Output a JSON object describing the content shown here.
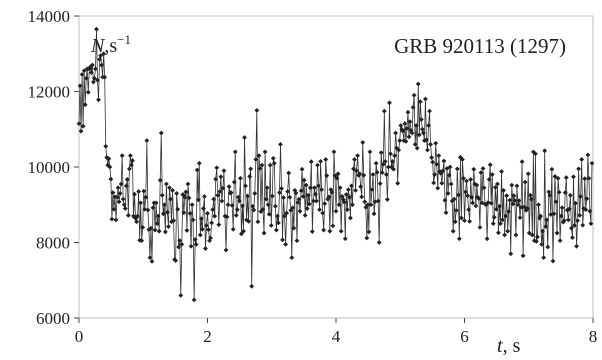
{
  "chart_data": {
    "type": "line",
    "title": "GRB 920113 (1297)",
    "xlabel": {
      "var": "t",
      "unit": ", s"
    },
    "ylabel": {
      "var": "N",
      "unit": ",s",
      "exp": "−1"
    },
    "xlim": [
      0,
      8
    ],
    "ylim": [
      6000,
      14000
    ],
    "xticks": [
      0,
      2,
      4,
      6,
      8
    ],
    "yticks": [
      6000,
      8000,
      10000,
      12000,
      14000
    ],
    "grid": false,
    "marker": "diamond",
    "line_color": "#333333",
    "series": [
      {
        "x_start": 0,
        "x_step": 0.016,
        "values": [
          11150,
          12150,
          10950,
          12450,
          11080,
          12550,
          11650,
          12350,
          12600,
          11980,
          12600,
          12650,
          12500,
          12700,
          12250,
          12350,
          12600,
          13650,
          12300,
          11780,
          12850,
          12950,
          12700,
          12380,
          13000,
          12380,
          10550,
          10250,
          10050,
          10220,
          10000,
          9680,
          8620,
          9320,
          8880,
          9210,
          8600,
          9200,
          9450,
          9080,
          9300,
          9550,
          10300,
          9150,
          9000,
          8900,
          9500,
          9670,
          8720,
          9950,
          10300,
          10050,
          10170,
          8700,
          9280,
          8640,
          8550,
          8700,
          9350,
          8060,
          9050,
          8050,
          8400,
          9360,
          8880,
          9200,
          10700,
          8860,
          8340,
          7600,
          8380,
          7500,
          8920,
          9050,
          8330,
          9050,
          8500,
          8700,
          8300,
          9650,
          10900,
          9250,
          8760,
          9000,
          8280,
          9550,
          8800,
          8420,
          9450,
          9150,
          8550,
          9380,
          8580,
          7550,
          7520,
          9300,
          8880,
          7880,
          8050,
          6600,
          7950,
          9270,
          8790,
          9200,
          9340,
          8320,
          9550,
          9180,
          8770,
          7900,
          9000,
          8600,
          6480,
          8080,
          7950,
          9920,
          9130,
          10100,
          8200,
          8630,
          8350,
          8900,
          9220,
          7840,
          8450,
          8770,
          8340,
          8050,
          8120,
          8520,
          8870,
          9150,
          8700,
          9680,
          9980,
          9250,
          8470,
          9350,
          9740,
          9100,
          9440,
          9900,
          8700,
          7800,
          8680,
          9000,
          9480,
          9310,
          9320,
          8980,
          8350,
          9600,
          10400,
          8720,
          8870,
          9200,
          9100,
          9700,
          8230,
          8970,
          8300,
          10780,
          9500,
          8600,
          9230,
          8560,
          9750,
          9950,
          6840,
          8960,
          8860,
          9300,
          10200,
          11500,
          8550,
          10300,
          9960,
          8820,
          10050,
          8880,
          8250,
          10400,
          9150,
          9450,
          9000,
          8750,
          10050,
          8450,
          9230,
          10230,
          10100,
          8960,
          8330,
          8700,
          8520,
          9320,
          10600,
          9430,
          8070,
          9190,
          8700,
          7950,
          8780,
          9350,
          9840,
          9200,
          8850,
          7600,
          8920,
          8380,
          9380,
          9310,
          8050,
          9060,
          9150,
          8830,
          9370,
          9940,
          9220,
          9650,
          8720,
          9520,
          8900,
          9250,
          9020,
          9450,
          10140,
          8290,
          9100,
          9450,
          9280,
          9100,
          10050,
          9500,
          8870,
          10150,
          9400,
          8780,
          8330,
          9030,
          10200,
          9770,
          9150,
          9210,
          8300,
          9400,
          9330,
          8440,
          10400,
          9770,
          8830,
          9700,
          9820,
          9000,
          9450,
          8300,
          9220,
          9140,
          9070,
          8100,
          9270,
          8870,
          9400,
          9200,
          8650,
          9500,
          9000,
          9950,
          10200,
          9380,
          9900,
          10300,
          9780,
          9820,
          9480,
          9210,
          10650,
          9780,
          9080,
          8930,
          8120,
          9000,
          8280,
          10400,
          9000,
          9400,
          9800,
          8760,
          9080,
          10100,
          9860,
          9100,
          8000,
          9560,
          10380,
          9850,
          10070,
          11480,
          10150,
          9800,
          9140,
          10000,
          11700,
          10350,
          10000,
          10150,
          9940,
          10300,
          10900,
          10500,
          9570,
          10450,
          10700,
          11100,
          11000,
          10950,
          10700,
          11150,
          10680,
          11020,
          11450,
          10800,
          11200,
          10970,
          10900,
          11580,
          11900,
          10600,
          11100,
          10500,
          12200,
          10850,
          11730,
          11260,
          11000,
          10900,
          10700,
          11800,
          10720,
          10450,
          11100,
          11480,
          10600,
          10250,
          10130,
          9580,
          9800,
          10630,
          10070,
          9440,
          10300,
          9880,
          9830,
          9570,
          9900,
          10160,
          9120,
          8790,
          9960,
          9300,
          9780,
          10000,
          9550,
          9100,
          8300,
          9150,
          8550,
          8850,
          9950,
          9260,
          8100,
          10260,
          8650,
          10200,
          9700,
          8580,
          9340,
          9630,
          9240,
          8870,
          8560,
          9670,
          9200,
          9050,
          9940,
          9550,
          8970,
          9520,
          9200,
          9160,
          8400,
          9850,
          9050,
          9960,
          9450,
          9020,
          9000,
          8100,
          9060,
          9670,
          10060,
          9040,
          9800,
          8500,
          8670,
          9460,
          8880,
          9550,
          8260,
          8960,
          8500,
          9880,
          8600,
          9380,
          8200,
          8700,
          9240,
          8300,
          8820,
          9120,
          7700,
          9520,
          9020,
          9240,
          9110,
          8200,
          9500,
          9000,
          9110,
          8660,
          8930,
          10140,
          7650,
          8940,
          9600,
          8850,
          8900,
          9820,
          8250,
          9250,
          9150,
          8200,
          10400,
          8050,
          10350,
          8030,
          8150,
          9000,
          8650,
          8700,
          7950,
          8300,
          7600,
          10430,
          8420,
          8600,
          7880,
          9340,
          9250,
          8740,
          9940,
          7510,
          8760,
          9750,
          9080,
          8250,
          9700,
          9330,
          8050,
          8700,
          8920,
          8540,
          8580,
          9320,
          9720,
          8860,
          8600,
          8890,
          9250,
          8380,
          8130,
          9740,
          8450,
          9040,
          7900,
          8580,
          9950,
          8720,
          9220,
          10200,
          8460,
          8900,
          9690,
          8870,
          9160,
          10320,
          9700,
          8830,
          8500,
          10100
        ]
      }
    ]
  }
}
